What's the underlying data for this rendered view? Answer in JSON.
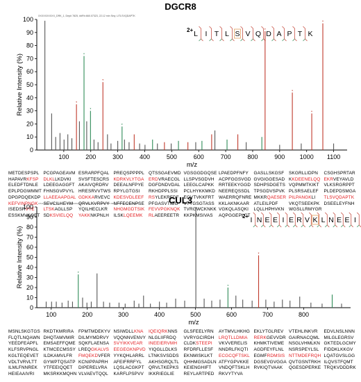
{
  "chart_data": [
    {
      "type": "bar",
      "title": "DGCR8",
      "header": "XXXXXXXXXX_DRK_1, Dep# 7825, ##Rt=660.07323, 22.12 min Seq: LITLSVQDAPTK",
      "xlabel": "m/z",
      "ylabel": "Relative Intensity (%)",
      "xlim": [
        0,
        1150
      ],
      "ylim": [
        0,
        100
      ],
      "xticks": [
        100,
        200,
        300,
        400,
        500,
        600,
        700,
        800,
        900,
        1000,
        1100
      ],
      "yticks": [
        0,
        10,
        20,
        30,
        40,
        50,
        60,
        70,
        80,
        90,
        100
      ],
      "peptide": {
        "charge": "2+",
        "residues": [
          "L",
          "I",
          "T",
          "L",
          "S",
          "V",
          "Q",
          "D",
          "A",
          "P",
          "T",
          "K"
        ],
        "modified_index": 4
      },
      "peaks": [
        {
          "mz": 30,
          "y": 99,
          "c": "#555555"
        },
        {
          "mz": 55,
          "y": 28,
          "c": "#555555"
        },
        {
          "mz": 70,
          "y": 10,
          "c": "#555555"
        },
        {
          "mz": 86,
          "y": 13,
          "c": "#555555"
        },
        {
          "mz": 101,
          "y": 8,
          "c": "#555555"
        },
        {
          "mz": 115,
          "y": 12,
          "c": "#555555"
        },
        {
          "mz": 130,
          "y": 9,
          "c": "#555555"
        },
        {
          "mz": 147,
          "y": 35,
          "c": "#c0392b"
        },
        {
          "mz": 158,
          "y": 22,
          "c": "#555555"
        },
        {
          "mz": 175,
          "y": 72,
          "c": "#2e8b57"
        },
        {
          "mz": 185,
          "y": 22,
          "c": "#555555"
        },
        {
          "mz": 199,
          "y": 30,
          "c": "#2e8b57"
        },
        {
          "mz": 212,
          "y": 8,
          "c": "#555555"
        },
        {
          "mz": 227,
          "y": 6,
          "c": "#555555"
        },
        {
          "mz": 245,
          "y": 52,
          "c": "#c0392b"
        },
        {
          "mz": 262,
          "y": 12,
          "c": "#555555"
        },
        {
          "mz": 275,
          "y": 5,
          "c": "#555555"
        },
        {
          "mz": 300,
          "y": 7,
          "c": "#555555"
        },
        {
          "mz": 316,
          "y": 18,
          "c": "#2e8b57"
        },
        {
          "mz": 325,
          "y": 8,
          "c": "#555555"
        },
        {
          "mz": 342,
          "y": 6,
          "c": "#555555"
        },
        {
          "mz": 361,
          "y": 12,
          "c": "#c0392b"
        },
        {
          "mz": 381,
          "y": 5,
          "c": "#555555"
        },
        {
          "mz": 401,
          "y": 4,
          "c": "#555555"
        },
        {
          "mz": 429,
          "y": 8,
          "c": "#2e8b57"
        },
        {
          "mz": 447,
          "y": 5,
          "c": "#555555"
        },
        {
          "mz": 473,
          "y": 6,
          "c": "#c0392b"
        },
        {
          "mz": 498,
          "y": 5,
          "c": "#555555"
        },
        {
          "mz": 525,
          "y": 7,
          "c": "#2e8b57"
        },
        {
          "mz": 560,
          "y": 6,
          "c": "#c0392b"
        },
        {
          "mz": 589,
          "y": 6,
          "c": "#555555"
        },
        {
          "mz": 612,
          "y": 7,
          "c": "#2e8b57"
        },
        {
          "mz": 648,
          "y": 12,
          "c": "#c0392b"
        },
        {
          "mz": 660,
          "y": 15,
          "c": "#555555"
        },
        {
          "mz": 705,
          "y": 8,
          "c": "#2e8b57"
        },
        {
          "mz": 745,
          "y": 12,
          "c": "#c0392b"
        },
        {
          "mz": 776,
          "y": 6,
          "c": "#555555"
        },
        {
          "mz": 834,
          "y": 10,
          "c": "#2e8b57"
        },
        {
          "mz": 846,
          "y": 91,
          "c": "#c0392b"
        },
        {
          "mz": 900,
          "y": 4,
          "c": "#555555"
        },
        {
          "mz": 947,
          "y": 44,
          "c": "#c0392b"
        },
        {
          "mz": 980,
          "y": 5,
          "c": "#555555"
        },
        {
          "mz": 1019,
          "y": 28,
          "c": "#c0392b"
        },
        {
          "mz": 1060,
          "y": 97,
          "c": "#c0392b"
        },
        {
          "mz": 1100,
          "y": 5,
          "c": "#555555"
        }
      ]
    },
    {
      "type": "bar",
      "title": "CUL3",
      "header": "XXXXXXXXXX_DRK_1, Dep# 8105, ##Rt=761.73232, 23.83 min Seq: INEEIERVKLNEEIR",
      "xlabel": "m/z",
      "ylabel": "Relative Intensity (%)",
      "xlim": [
        60,
        930
      ],
      "ylim": [
        0,
        100
      ],
      "xticks": [
        100,
        200,
        300,
        400,
        500,
        600,
        700,
        800
      ],
      "yticks": [
        0,
        10,
        20,
        30,
        40,
        50,
        60,
        70,
        80,
        90,
        100
      ],
      "peptide": {
        "charge": "2+",
        "residues": [
          "I",
          "N",
          "E",
          "E",
          "I",
          "E",
          "R",
          "V",
          "K",
          "L",
          "N",
          "E",
          "E",
          "I",
          "R"
        ],
        "modified_index": 8
      },
      "peaks": [
        {
          "mz": 86,
          "y": 6,
          "c": "#555555"
        },
        {
          "mz": 101,
          "y": 6,
          "c": "#555555"
        },
        {
          "mz": 114,
          "y": 6,
          "c": "#555555"
        },
        {
          "mz": 130,
          "y": 5,
          "c": "#555555"
        },
        {
          "mz": 147,
          "y": 7,
          "c": "#555555"
        },
        {
          "mz": 159,
          "y": 6,
          "c": "#555555"
        },
        {
          "mz": 175,
          "y": 33,
          "c": "#2e8b57"
        },
        {
          "mz": 187,
          "y": 10,
          "c": "#555555"
        },
        {
          "mz": 199,
          "y": 5,
          "c": "#555555"
        },
        {
          "mz": 211,
          "y": 6,
          "c": "#555555"
        },
        {
          "mz": 227,
          "y": 34,
          "c": "#555555"
        },
        {
          "mz": 245,
          "y": 6,
          "c": "#555555"
        },
        {
          "mz": 262,
          "y": 5,
          "c": "#555555"
        },
        {
          "mz": 288,
          "y": 5,
          "c": "#555555"
        },
        {
          "mz": 305,
          "y": 4,
          "c": "#555555"
        },
        {
          "mz": 330,
          "y": 7,
          "c": "#555555"
        },
        {
          "mz": 343,
          "y": 4,
          "c": "#555555"
        },
        {
          "mz": 356,
          "y": 12,
          "c": "#555555"
        },
        {
          "mz": 375,
          "y": 4,
          "c": "#555555"
        },
        {
          "mz": 400,
          "y": 6,
          "c": "#555555"
        },
        {
          "mz": 420,
          "y": 5,
          "c": "#555555"
        },
        {
          "mz": 445,
          "y": 9,
          "c": "#555555"
        },
        {
          "mz": 470,
          "y": 7,
          "c": "#555555"
        },
        {
          "mz": 501,
          "y": 100,
          "c": "#555555"
        },
        {
          "mz": 524,
          "y": 9,
          "c": "#555555"
        },
        {
          "mz": 545,
          "y": 7,
          "c": "#555555"
        },
        {
          "mz": 568,
          "y": 8,
          "c": "#555555"
        },
        {
          "mz": 590,
          "y": 20,
          "c": "#2e8b57"
        },
        {
          "mz": 612,
          "y": 12,
          "c": "#555555"
        },
        {
          "mz": 631,
          "y": 8,
          "c": "#555555"
        },
        {
          "mz": 657,
          "y": 7,
          "c": "#555555"
        },
        {
          "mz": 675,
          "y": 52,
          "c": "#c0392b"
        },
        {
          "mz": 695,
          "y": 8,
          "c": "#555555"
        },
        {
          "mz": 718,
          "y": 6,
          "c": "#555555"
        },
        {
          "mz": 741,
          "y": 8,
          "c": "#555555"
        },
        {
          "mz": 762,
          "y": 7,
          "c": "#555555"
        },
        {
          "mz": 789,
          "y": 11,
          "c": "#555555"
        },
        {
          "mz": 820,
          "y": 5,
          "c": "#555555"
        },
        {
          "mz": 851,
          "y": 4,
          "c": "#555555"
        },
        {
          "mz": 879,
          "y": 13,
          "c": "#2e8b57"
        },
        {
          "mz": 905,
          "y": 4,
          "c": "#555555"
        }
      ]
    }
  ],
  "sequences": [
    {
      "name": "DGCR8",
      "rows": [
        [
          "METDESPSPL",
          "PCGPAGEAVM",
          "ESRARPFQAL",
          "PREQSPPPPL",
          "QTSSGAEVMD",
          "VGSGGDGQSE",
          "LPAEDPFNFY",
          "GASLLSKGSF",
          "SKGRLLIDPN",
          "CSGHSPRTAR"
        ],
        [
          "HAPAVRKFSP",
          "DLKLLKDVKI",
          "SVSFTESCRS",
          "KDRKVLYTGA",
          "ERDVRAECGL",
          "LLSPVSGDVH",
          "ACPFGGSVGD",
          "GVGIGGESAD",
          "KKDEENELQQ",
          "EKRVEYAVLD"
        ],
        [
          "ELEDFTDNLE",
          "LDEEGAGGFT",
          "AKAIVQRDRV",
          "DEEALNFPYE",
          "DGFDNDVDAL",
          "LEEGLCAPKK",
          "RRTEEKYGGD",
          "SDHPSDGETS",
          "VQPMMTKIKT",
          "VLKSRGRPPT"
        ],
        [
          "EPLPDGWMMT",
          "FHNSGVPVYL",
          "HRESRVVTWS",
          "RPYLGTGSI",
          "RKHDPPLSSI",
          "PCLHYKKMKD",
          "NEEREQSSDL",
          "TPSGDVSPVK",
          "PLSRSAELEF",
          "PLDEPDSMGA"
        ],
        [
          "DPGPDQEKDP",
          "LLAEEAAPGAL",
          "GDKKARVEVC",
          "KDESVDLEEF",
          "RSYLEKRFDF",
          "EQVTVKKFRT",
          "WAERRQFNRE",
          "MKKRQAESER",
          "PILPANGKLI",
          "TLSVQDAPTK"
        ],
        [
          "KEFVINPNGK",
          "SEVCILHEYM",
          "QRVLKVRPVY",
          "NFFECENPSE",
          "PFGASVTIDG",
          "VTYGSGTASS",
          "KKLAKNKAAR",
          "ATLEILPDF",
          "VKQTSEEKPK",
          "DSEELEYFNH"
        ],
        [
          "ISEDSRVYE",
          "LTSKAGLLSP",
          "YQILHECLKR",
          "NHGMGDTSIK",
          "FEVVPGKNQK",
          "TVRGWCKNKK",
          "VGKQLASQKI",
          "LQLLHPHVKN",
          "WGSLLRMYGR"
        ],
        [
          "ESSKMVKQET",
          "SDKSVIELQQ",
          "YAKKNKPNLH",
          "ILSKLQEEMK",
          "RLAEEREETR",
          "KKPKMSIVAS",
          "AQPGGEPLCT",
          "",
          "",
          ""
        ]
      ],
      "highlights": [
        {
          "row": 1,
          "col": 0,
          "from": 6
        },
        {
          "row": 1,
          "col": 1,
          "from": 0,
          "to": 4
        },
        {
          "row": 1,
          "col": 3,
          "from": 0
        },
        {
          "row": 1,
          "col": 4,
          "from": 0,
          "to": 3
        },
        {
          "row": 1,
          "col": 8,
          "from": 1
        },
        {
          "row": 1,
          "col": 9,
          "from": 0,
          "to": 3
        },
        {
          "row": 4,
          "col": 1,
          "from": 0
        },
        {
          "row": 4,
          "col": 2,
          "from": 0,
          "to": 5
        },
        {
          "row": 4,
          "col": 3,
          "from": 0
        },
        {
          "row": 4,
          "col": 4,
          "from": 0,
          "to": 2
        },
        {
          "row": 4,
          "col": 7,
          "from": 4
        },
        {
          "row": 4,
          "col": 8,
          "from": 0,
          "to": 8
        },
        {
          "row": 4,
          "col": 9,
          "from": 0
        },
        {
          "row": 5,
          "col": 0,
          "from": 0
        },
        {
          "row": 6,
          "col": 0,
          "from": 6
        },
        {
          "row": 6,
          "col": 1,
          "from": 0,
          "to": 4
        },
        {
          "row": 6,
          "col": 3,
          "from": 0
        },
        {
          "row": 6,
          "col": 4,
          "from": 0
        },
        {
          "row": 7,
          "col": 1,
          "from": 2
        },
        {
          "row": 7,
          "col": 2,
          "from": 0,
          "to": 4
        },
        {
          "row": 7,
          "col": 3,
          "from": 4
        },
        {
          "row": 7,
          "col": 4,
          "from": 0,
          "to": 2
        }
      ]
    },
    {
      "name": "CUL3",
      "rows": [
        [
          "MSNLSKGTGS",
          "RKDTKMRIRA",
          "FPMTMDEKYV",
          "NSIWDLLKNA",
          "IQEIQRKNNS",
          "GLSFEELYRN",
          "AYTMVLHKHG",
          "EKLYTGLREV",
          "VTEHLINKVR",
          "EDVLNSLNNN"
        ],
        [
          "FLQTLNQAWN",
          "DHQTAMVMIR",
          "DILMYMDRVY",
          "VQQNNVENVY",
          "NLGLIIFRDQ",
          "VVRYGCIRDH",
          "LRQTLLDMIA",
          "RERKGEVVDR",
          "GAIRNACQML",
          "MILGLEGRSV"
        ],
        [
          "YEEDFEAPFL",
          "EMSAEFFQME",
          "SQKFLAENSA",
          "SVYIKKVEAR",
          "INEEIERVMH",
          "CLDKSTEEPI",
          "VKVVERELIS",
          "KHMKTIVEME",
          "NSGLVHMLKN",
          "GKTEDLGCMY"
        ],
        [
          "KLFSRVPNGL",
          "KTMCECMSSY",
          "LREQGKALVS",
          "EEGEGKNPVD",
          "YIQGLLDLKS",
          "RFDRFLLESF",
          "NNDRLFKQTI",
          "AGDFEYFLNL",
          "NSRSPEYLSL",
          "FIDDKLKKGV"
        ],
        [
          "KGLTEQEVET",
          "ILDKAMVLFR",
          "FMQEKDVFER",
          "YYKQHLARRL",
          "LTNKSVSDDS",
          "EKNMISKLKT",
          "ECGCQFTSKL",
          "EGMFRDMSIS",
          "NTTMDEFRQH",
          "LQATGVSLGG"
        ],
        [
          "VDLTVRVLTT",
          "GYWPTQSATP",
          "KCNIPPAPRH",
          "AFEIFRRFYL",
          "AKHSGRQLTL",
          "QHHMGSADLN",
          "ATFYGPVKKE",
          "DGSEVGVGGA",
          "QVTGSNTRKH",
          "ILQVSTFQMT"
        ],
        [
          "ILMLFNNREK",
          "YTFEEIQQET",
          "DIPERELVRA",
          "LQSLACGKPT",
          "QRVLTKEPKS",
          "KEIENGHIFT",
          "VNDQFTSKLH",
          "RVKIQTVAAK",
          "QGESDPERKE",
          "TRQKVDDDRK"
        ],
        [
          "HEIEAAIVRI",
          "MKSRKKMQHN",
          "VLVAEVTQQL",
          "KARFLPSPVV",
          "IKKRIEGLIE",
          "REYLARTPED",
          "RKVYTYVA",
          "",
          "",
          ""
        ]
      ],
      "highlights": [
        {
          "row": 0,
          "col": 3,
          "from": 7
        },
        {
          "row": 0,
          "col": 4,
          "from": 0,
          "to": 7
        },
        {
          "row": 1,
          "col": 6,
          "from": 0
        },
        {
          "row": 1,
          "col": 7,
          "from": 0,
          "to": 4
        },
        {
          "row": 2,
          "col": 3,
          "from": 0
        },
        {
          "row": 2,
          "col": 4,
          "from": 0
        },
        {
          "row": 2,
          "col": 5,
          "from": 4
        },
        {
          "row": 3,
          "col": 2,
          "from": 4
        },
        {
          "row": 3,
          "col": 3,
          "from": 0
        },
        {
          "row": 4,
          "col": 2,
          "from": 0,
          "to": 6
        },
        {
          "row": 4,
          "col": 6,
          "from": 0
        },
        {
          "row": 4,
          "col": 7,
          "from": 4
        },
        {
          "row": 4,
          "col": 8,
          "from": 0
        }
      ]
    }
  ]
}
